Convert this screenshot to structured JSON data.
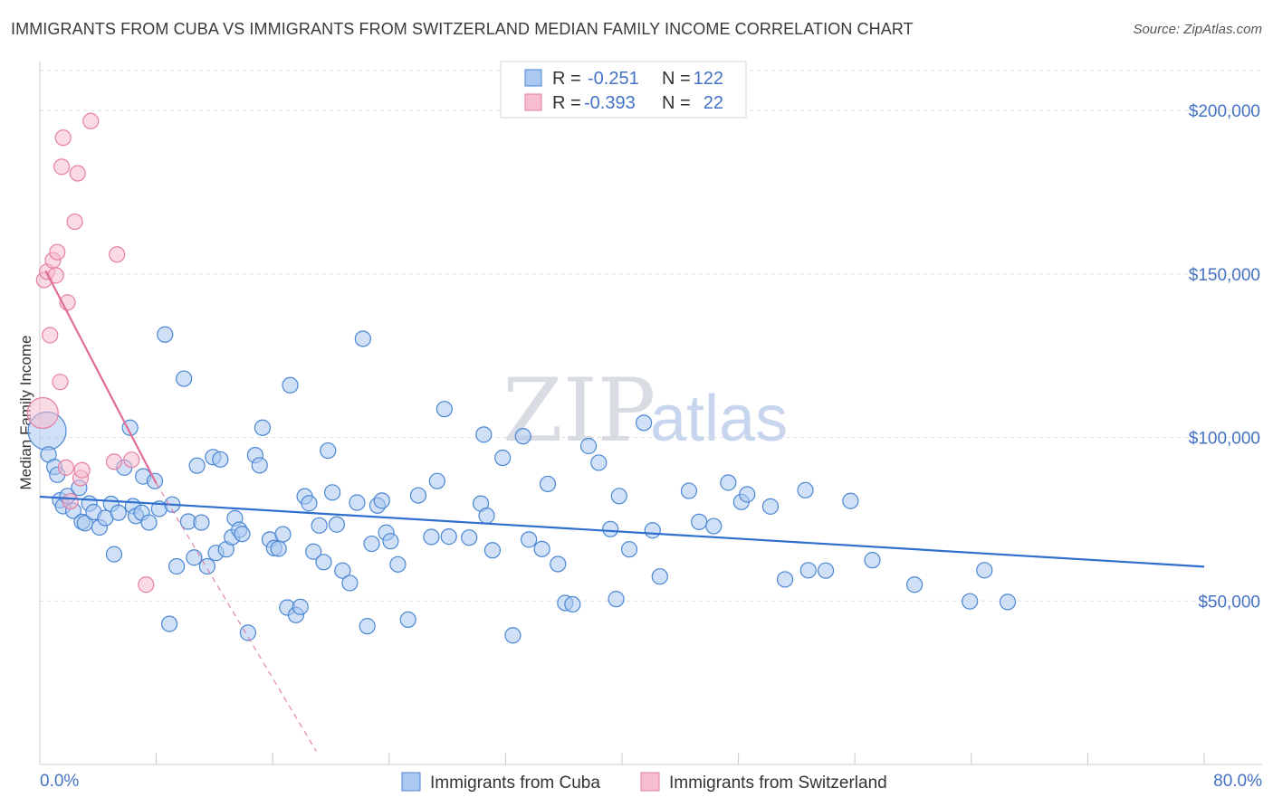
{
  "header": {
    "title": "IMMIGRANTS FROM CUBA VS IMMIGRANTS FROM SWITZERLAND MEDIAN FAMILY INCOME CORRELATION CHART",
    "source": "Source: ZipAtlas.com"
  },
  "watermark": {
    "zip": "ZIP",
    "atlas": "atlas"
  },
  "legend": {
    "r_label": "R =",
    "n_label": "N =",
    "rows": [
      {
        "r": "-0.251",
        "n": "122"
      },
      {
        "r": "-0.393",
        "n": "22"
      }
    ]
  },
  "colors": {
    "cuba_fill": "#aac8f0",
    "cuba_stroke": "#4a86d4",
    "cuba_line": "#2f6fce",
    "swiss_fill": "#f6bcd0",
    "swiss_stroke": "#e67fa3",
    "swiss_line": "#e06c98",
    "grid": "#dddddd",
    "axis_text": "#4472c4"
  },
  "chart_data": {
    "type": "scatter",
    "title": "IMMIGRANTS FROM CUBA VS IMMIGRANTS FROM SWITZERLAND MEDIAN FAMILY INCOME CORRELATION CHART",
    "xlabel": "",
    "ylabel": "Median Family Income",
    "xlim": [
      0,
      80
    ],
    "ylim": [
      0,
      215000
    ],
    "x_tick_labels": [
      "0.0%",
      "80.0%"
    ],
    "y_ticks": [
      50000,
      100000,
      150000,
      200000
    ],
    "y_tick_labels": [
      "$50,000",
      "$100,000",
      "$150,000",
      "$200,000"
    ],
    "legend_position": "top-center",
    "series": [
      {
        "name": "Immigrants from Cuba",
        "r": -0.251,
        "n": 122,
        "trend": {
          "x": [
            0,
            80
          ],
          "y": [
            81900,
            60500
          ]
        },
        "points": [
          [
            0.5,
            102000
          ],
          [
            0.6,
            94800
          ],
          [
            1.0,
            91000
          ],
          [
            1.2,
            88600
          ],
          [
            1.4,
            80800
          ],
          [
            1.6,
            79000
          ],
          [
            1.9,
            82100
          ],
          [
            2.3,
            77600
          ],
          [
            2.7,
            84600
          ],
          [
            2.9,
            74200
          ],
          [
            3.1,
            73800
          ],
          [
            3.4,
            79800
          ],
          [
            3.7,
            77200
          ],
          [
            4.1,
            72500
          ],
          [
            4.5,
            75400
          ],
          [
            4.9,
            79700
          ],
          [
            5.1,
            64300
          ],
          [
            5.4,
            77000
          ],
          [
            5.8,
            90800
          ],
          [
            6.2,
            103000
          ],
          [
            6.4,
            79000
          ],
          [
            6.6,
            76000
          ],
          [
            7.0,
            77000
          ],
          [
            7.1,
            88100
          ],
          [
            7.5,
            74000
          ],
          [
            7.9,
            86700
          ],
          [
            8.2,
            78200
          ],
          [
            8.6,
            131500
          ],
          [
            8.9,
            43000
          ],
          [
            9.1,
            79500
          ],
          [
            9.4,
            60600
          ],
          [
            9.9,
            118000
          ],
          [
            10.2,
            74300
          ],
          [
            10.6,
            63300
          ],
          [
            10.8,
            91400
          ],
          [
            11.1,
            74000
          ],
          [
            11.5,
            60600
          ],
          [
            11.9,
            94000
          ],
          [
            12.1,
            64700
          ],
          [
            12.4,
            93300
          ],
          [
            12.8,
            65800
          ],
          [
            13.2,
            69500
          ],
          [
            13.4,
            75300
          ],
          [
            13.7,
            71800
          ],
          [
            13.9,
            70500
          ],
          [
            14.3,
            40300
          ],
          [
            14.8,
            94600
          ],
          [
            15.1,
            91500
          ],
          [
            15.3,
            103000
          ],
          [
            15.8,
            68800
          ],
          [
            16.1,
            66200
          ],
          [
            16.4,
            66000
          ],
          [
            16.7,
            70400
          ],
          [
            17.0,
            48000
          ],
          [
            17.2,
            116000
          ],
          [
            17.6,
            45700
          ],
          [
            17.9,
            48200
          ],
          [
            18.2,
            82000
          ],
          [
            18.5,
            79900
          ],
          [
            18.8,
            65100
          ],
          [
            19.2,
            73100
          ],
          [
            19.5,
            61900
          ],
          [
            19.8,
            96000
          ],
          [
            20.1,
            83200
          ],
          [
            20.4,
            73400
          ],
          [
            20.8,
            59300
          ],
          [
            21.3,
            55500
          ],
          [
            21.8,
            80100
          ],
          [
            22.2,
            130200
          ],
          [
            22.5,
            42300
          ],
          [
            22.8,
            67500
          ],
          [
            23.2,
            79200
          ],
          [
            23.5,
            80700
          ],
          [
            23.8,
            70900
          ],
          [
            24.1,
            68300
          ],
          [
            24.6,
            61200
          ],
          [
            25.3,
            44300
          ],
          [
            26.0,
            82300
          ],
          [
            26.9,
            69600
          ],
          [
            27.3,
            86700
          ],
          [
            27.8,
            108700
          ],
          [
            28.1,
            69700
          ],
          [
            29.5,
            69400
          ],
          [
            30.3,
            79800
          ],
          [
            30.5,
            100900
          ],
          [
            30.7,
            76100
          ],
          [
            31.1,
            65500
          ],
          [
            31.8,
            93800
          ],
          [
            32.5,
            39500
          ],
          [
            33.2,
            100400
          ],
          [
            33.6,
            68800
          ],
          [
            34.5,
            65900
          ],
          [
            34.9,
            85800
          ],
          [
            35.6,
            61300
          ],
          [
            36.1,
            49400
          ],
          [
            36.6,
            49000
          ],
          [
            37.7,
            97400
          ],
          [
            38.4,
            92300
          ],
          [
            39.2,
            72000
          ],
          [
            39.6,
            50600
          ],
          [
            39.8,
            82100
          ],
          [
            40.5,
            65800
          ],
          [
            41.5,
            104500
          ],
          [
            42.1,
            71600
          ],
          [
            42.6,
            57500
          ],
          [
            44.6,
            83700
          ],
          [
            45.3,
            74200
          ],
          [
            46.3,
            72900
          ],
          [
            47.3,
            86200
          ],
          [
            48.2,
            80300
          ],
          [
            48.6,
            82600
          ],
          [
            50.2,
            78900
          ],
          [
            51.2,
            56600
          ],
          [
            52.6,
            83900
          ],
          [
            52.8,
            59400
          ],
          [
            54.0,
            59300
          ],
          [
            55.7,
            80600
          ],
          [
            57.2,
            62500
          ],
          [
            60.1,
            55000
          ],
          [
            63.9,
            49900
          ],
          [
            64.9,
            59400
          ],
          [
            66.5,
            49700
          ]
        ]
      },
      {
        "name": "Immigrants from Switzerland",
        "r": -0.393,
        "n": 22,
        "trend": {
          "x": [
            0.4,
            8.0
          ],
          "y": [
            151000,
            86000
          ]
        },
        "trend_extension": {
          "x": [
            8.0,
            19.0
          ],
          "y": [
            86000,
            4000
          ]
        },
        "points": [
          [
            0.2,
            107500
          ],
          [
            0.3,
            148200
          ],
          [
            0.5,
            150700
          ],
          [
            0.7,
            131300
          ],
          [
            0.9,
            154200
          ],
          [
            1.1,
            149600
          ],
          [
            1.2,
            156700
          ],
          [
            1.4,
            117000
          ],
          [
            1.5,
            182800
          ],
          [
            1.6,
            191700
          ],
          [
            1.8,
            90800
          ],
          [
            1.9,
            141300
          ],
          [
            2.1,
            80500
          ],
          [
            2.4,
            166000
          ],
          [
            2.6,
            180800
          ],
          [
            2.8,
            87600
          ],
          [
            2.9,
            90000
          ],
          [
            3.5,
            196800
          ],
          [
            5.1,
            92600
          ],
          [
            5.3,
            156000
          ],
          [
            6.3,
            93200
          ],
          [
            7.3,
            55000
          ]
        ]
      }
    ]
  },
  "bottom_legend": {
    "items": [
      {
        "label": "Immigrants from Cuba"
      },
      {
        "label": "Immigrants from Switzerland"
      }
    ]
  }
}
